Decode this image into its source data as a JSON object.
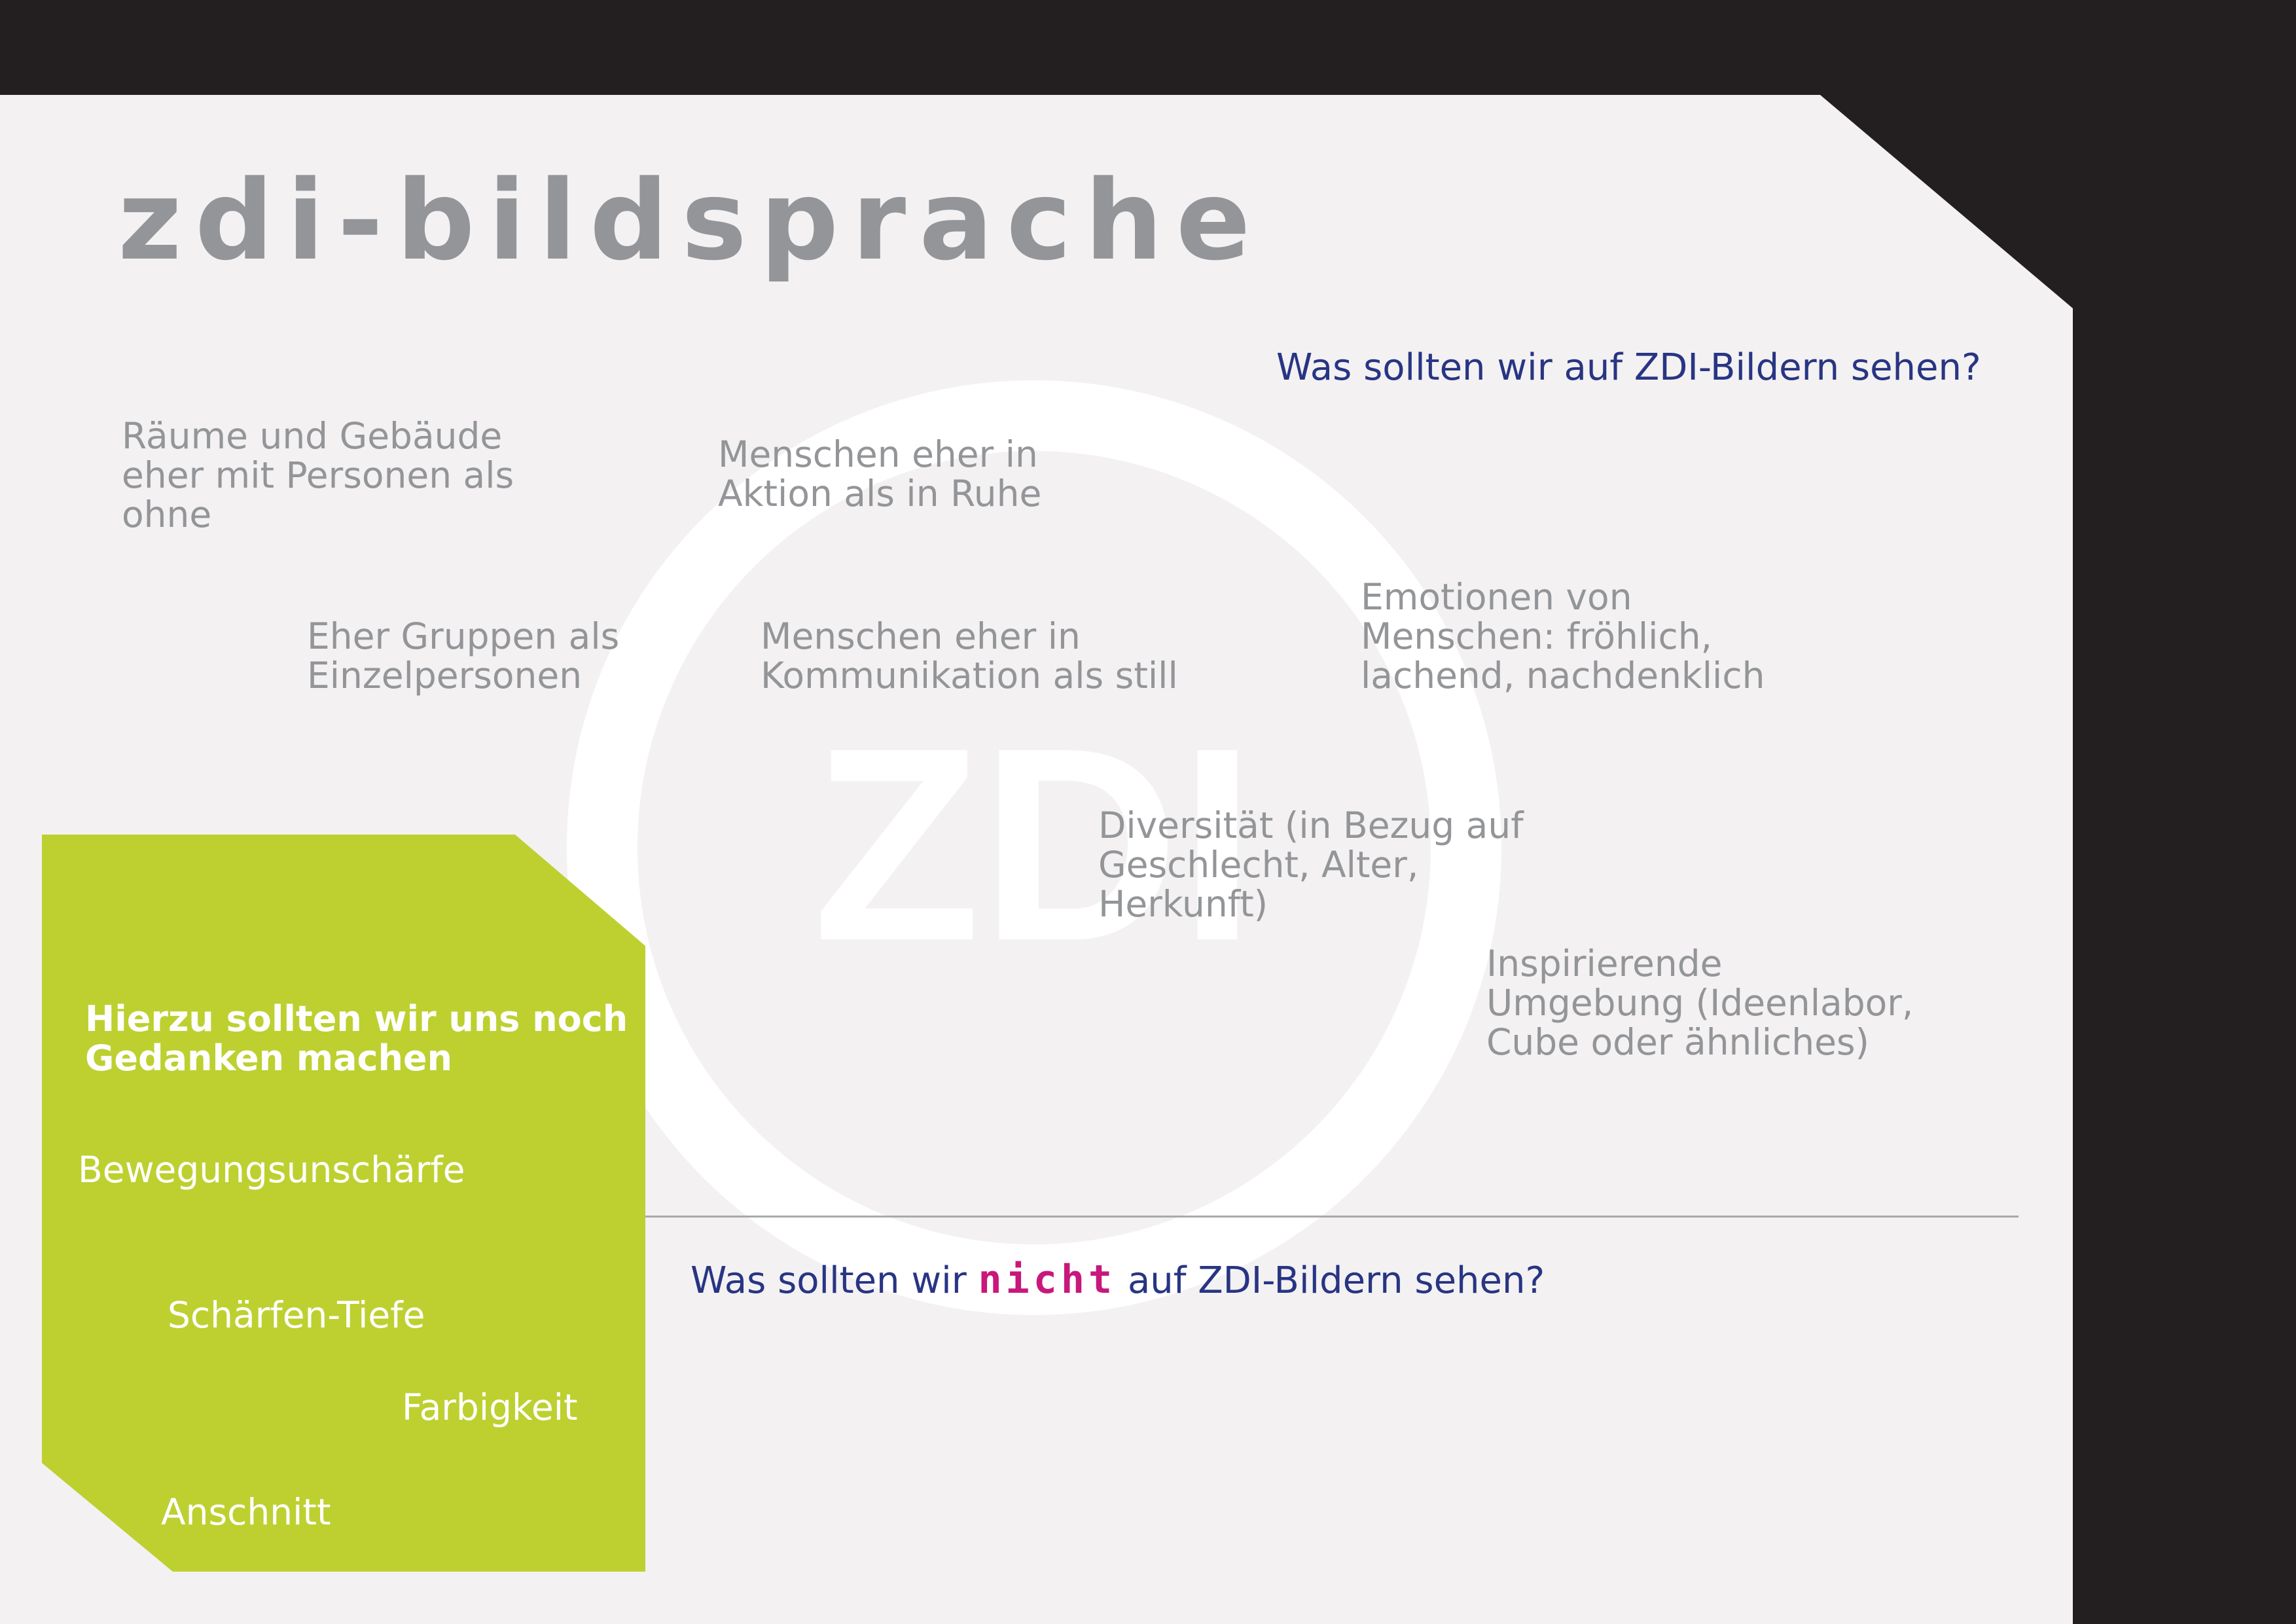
{
  "title": "ZDI-Bildsprache",
  "watermark_text": "ZDI",
  "question_positive": "Was sollten wir auf ZDI-Bildern sehen?",
  "question_negative": {
    "prefix": "Was sollten wir",
    "emphasis": "nicht",
    "suffix": "auf ZDI-Bildern sehen?"
  },
  "positive_items": [
    "Räume und Gebäude\neher mit Personen als\nohne",
    "Menschen eher in\nAktion als in Ruhe",
    "Eher Gruppen als\nEinzelpersonen",
    "Menschen eher in\nKommunikation als still",
    "Emotionen von\nMenschen: fröhlich,\nlachend, nachdenklich",
    "Diversität (in Bezug auf\nGeschlecht, Alter,\nHerkunft)",
    "Inspirierende\nUmgebung (Ideenlabor,\nCube oder ähnliches)"
  ],
  "open_topics": {
    "heading": "Hierzu sollten wir uns noch\nGedanken machen",
    "items": [
      "Bewegungsunschärfe",
      "Schärfen-Tiefe",
      "Farbigkeit",
      "Anschnitt"
    ]
  },
  "colors": {
    "background_dark": "#231f20",
    "board": "#f3f1f2",
    "title_gray": "#939598",
    "question_blue": "#283583",
    "emphasis_magenta": "#c8187c",
    "panel_green": "#bdd030",
    "white": "#ffffff"
  }
}
